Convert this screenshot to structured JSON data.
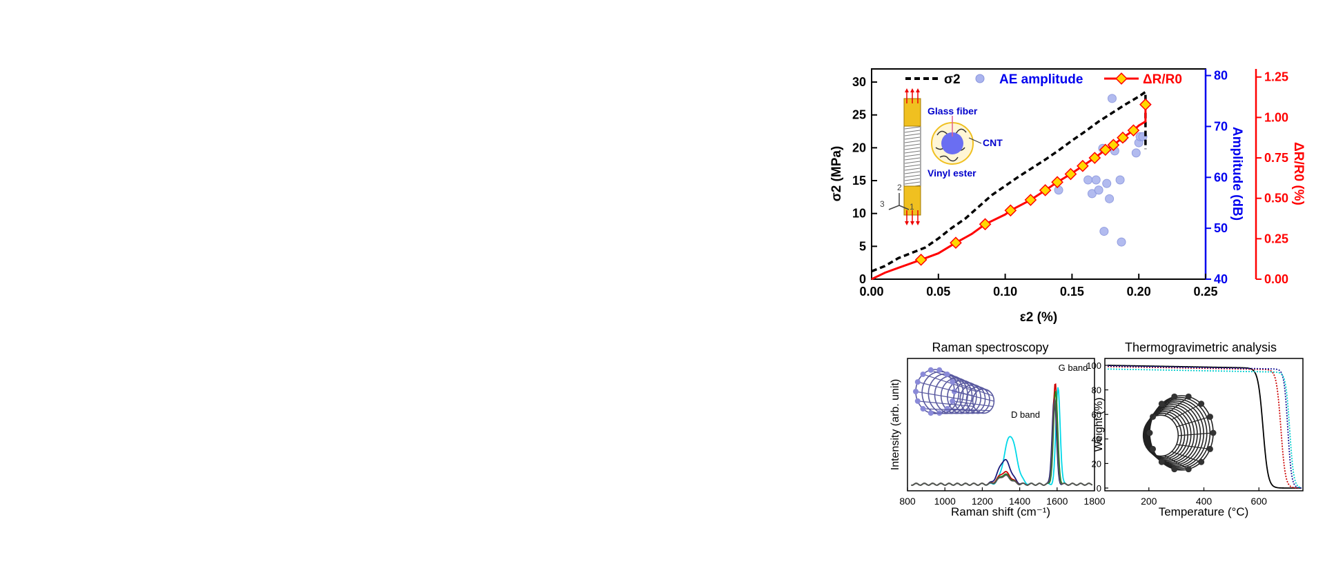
{
  "colors": {
    "sigma": "#000000",
    "ae": "#0000ee",
    "ae_fill": "#aab4ee",
    "dr": "#ff0000",
    "marker_fill": "#ffd700",
    "fiber_gold": "#f0c020",
    "fiber_blue": "#6a6ef2"
  },
  "chart_data": [
    {
      "type": "line",
      "legend": {
        "sigma_label": "σ2",
        "ae_label": "AE amplitude",
        "dr_label": "ΔR/R0",
        "placement": "top"
      },
      "xlabel": "ε2 (%)",
      "ylabel_left": "σ2 (MPa)",
      "ylabel_right1": "Amplitude (dB)",
      "ylabel_right2": "ΔR/R0 (%)",
      "xlim": [
        0,
        0.25
      ],
      "ylim_left": [
        0,
        32
      ],
      "ylim_right1": [
        40,
        81.3
      ],
      "ylim_right2": [
        0,
        1.3
      ],
      "xticks": [
        "0.00",
        "0.05",
        "0.10",
        "0.15",
        "0.20",
        "0.25"
      ],
      "yticks_left": [
        "0",
        "5",
        "10",
        "15",
        "20",
        "25",
        "30"
      ],
      "yticks_right1": [
        "40",
        "50",
        "60",
        "70",
        "80"
      ],
      "yticks_right2": [
        "0.00",
        "0.25",
        "0.50",
        "0.75",
        "1.00",
        "1.25"
      ],
      "inset_labels": {
        "glass": "Glass fiber",
        "cnt": "CNT",
        "vinyl": "Vinyl ester",
        "axis1": "1",
        "axis2": "2",
        "axis3": "3"
      },
      "series": [
        {
          "name": "σ2",
          "axis": "left",
          "x": [
            0,
            0.01,
            0.02,
            0.03,
            0.04,
            0.05,
            0.06,
            0.07,
            0.08,
            0.09,
            0.1,
            0.11,
            0.12,
            0.13,
            0.14,
            0.15,
            0.16,
            0.17,
            0.18,
            0.19,
            0.2,
            0.205,
            0.205
          ],
          "y": [
            1.2,
            2.0,
            3.2,
            4.0,
            4.8,
            6.2,
            7.8,
            9.2,
            11.0,
            12.8,
            14.2,
            15.6,
            16.9,
            18.2,
            19.6,
            21.1,
            22.5,
            24.0,
            25.3,
            26.6,
            27.8,
            28.5,
            19.8
          ]
        },
        {
          "name": "ΔR/R0",
          "axis": "right2",
          "x": [
            0,
            0.01,
            0.02,
            0.037,
            0.05,
            0.063,
            0.075,
            0.085,
            0.1,
            0.104,
            0.119,
            0.13,
            0.139,
            0.149,
            0.158,
            0.167,
            0.175,
            0.181,
            0.188,
            0.196,
            0.2,
            0.205,
            0.205
          ],
          "y": [
            0.0,
            0.04,
            0.07,
            0.12,
            0.16,
            0.225,
            0.28,
            0.34,
            0.4,
            0.425,
            0.49,
            0.55,
            0.6,
            0.65,
            0.7,
            0.75,
            0.8,
            0.83,
            0.875,
            0.92,
            0.95,
            0.975,
            1.08
          ],
          "markers_x": [
            0.037,
            0.063,
            0.085,
            0.104,
            0.119,
            0.13,
            0.139,
            0.149,
            0.158,
            0.167,
            0.175,
            0.181,
            0.188,
            0.196,
            0.205
          ],
          "markers_y": [
            0.12,
            0.225,
            0.34,
            0.425,
            0.49,
            0.55,
            0.6,
            0.65,
            0.7,
            0.75,
            0.8,
            0.83,
            0.875,
            0.92,
            1.08
          ]
        },
        {
          "name": "AE amplitude",
          "axis": "right1",
          "type": "scatter",
          "x": [
            0.14,
            0.162,
            0.165,
            0.168,
            0.17,
            0.173,
            0.174,
            0.176,
            0.178,
            0.18,
            0.182,
            0.186,
            0.187,
            0.188,
            0.198,
            0.2,
            0.201,
            0.203
          ],
          "y": [
            57.5,
            59.5,
            56.8,
            59.5,
            57.5,
            65.7,
            49.4,
            58.8,
            55.8,
            75.5,
            65.2,
            59.5,
            47.3,
            67.7,
            64.8,
            66.8,
            68.0,
            68.0
          ]
        }
      ]
    },
    {
      "type": "line",
      "title": "Raman spectroscopy",
      "xlabel": "Raman shift (cm⁻¹)",
      "ylabel": "Intensity (arb. unit)",
      "xlim": [
        800,
        1800
      ],
      "xticks": [
        "800",
        "1000",
        "1200",
        "1400",
        "1600",
        "1800"
      ],
      "annotations": [
        "D band",
        "G band"
      ],
      "series": [
        {
          "color": "#00d8e8",
          "d_peak": 1350,
          "d_height": 0.4,
          "g_peak": 1605,
          "g_height": 0.8
        },
        {
          "color": "#1a1a7a",
          "d_peak": 1320,
          "d_height": 0.2,
          "g_peak": 1585,
          "g_height": 0.72
        },
        {
          "color": "#cc0000",
          "d_peak": 1320,
          "d_height": 0.1,
          "g_peak": 1590,
          "g_height": 0.83
        },
        {
          "color": "#228822",
          "d_peak": 1320,
          "d_height": 0.08,
          "g_peak": 1592,
          "g_height": 0.76
        },
        {
          "color": "#555555",
          "d_peak": 1320,
          "d_height": 0.07,
          "g_peak": 1588,
          "g_height": 0.7
        }
      ]
    },
    {
      "type": "line",
      "title": "Thermogravimetric analysis",
      "xlabel": "Temperature (°C)",
      "ylabel": "Weight (%)",
      "xlim": [
        40,
        760
      ],
      "ylim": [
        0,
        100
      ],
      "xticks": [
        "200",
        "400",
        "600"
      ],
      "yticks": [
        "0",
        "20",
        "40",
        "60",
        "80",
        "100"
      ],
      "series": [
        {
          "color": "#000000",
          "t_onset": 615,
          "width": 20,
          "initial": 100
        },
        {
          "color": "#cc0000",
          "t_onset": 680,
          "width": 18,
          "initial": 99
        },
        {
          "color": "#1a1a99",
          "t_onset": 705,
          "width": 15,
          "initial": 99.5
        },
        {
          "color": "#00cccc",
          "t_onset": 712,
          "width": 16,
          "initial": 97
        }
      ]
    }
  ]
}
